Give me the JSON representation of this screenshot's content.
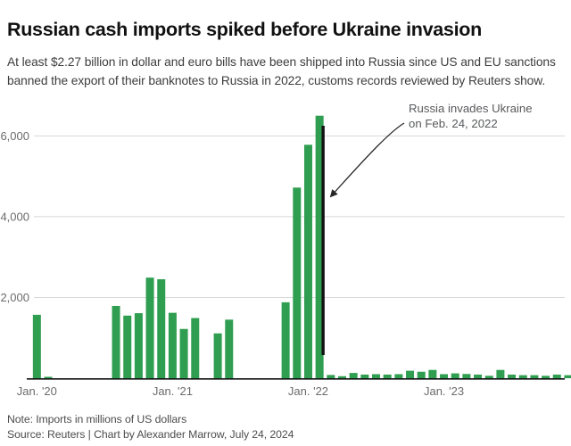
{
  "header": {
    "title": "Russian cash imports spiked before Ukraine invasion",
    "subtitle": "At least $2.27 billion in dollar and euro bills have been shipped into Russia since US and EU sanctions banned the export of their banknotes to Russia in 2022, customs records reviewed by Reuters show."
  },
  "chart_data": {
    "type": "bar",
    "title": "Russian cash imports spiked before Ukraine invasion",
    "unit": "millions of US dollars",
    "x": [
      "Jan '20",
      "Feb '20",
      "Mar '20",
      "Apr '20",
      "May '20",
      "Jun '20",
      "Jul '20",
      "Aug '20",
      "Sep '20",
      "Oct '20",
      "Nov '20",
      "Dec '20",
      "Jan '21",
      "Feb '21",
      "Mar '21",
      "Apr '21",
      "May '21",
      "Jun '21",
      "Jul '21",
      "Aug '21",
      "Sep '21",
      "Oct '21",
      "Nov '21",
      "Dec '21",
      "Jan '22",
      "Feb '22",
      "Mar '22",
      "Apr '22",
      "May '22",
      "Jun '22",
      "Jul '22",
      "Aug '22",
      "Sep '22",
      "Oct '22",
      "Nov '22",
      "Dec '22",
      "Jan '23",
      "Feb '23",
      "Mar '23",
      "Apr '23",
      "May '23",
      "Jun '23",
      "Jul '23",
      "Aug '23",
      "Sep '23",
      "Oct '23",
      "Nov '23",
      "Dec '23"
    ],
    "values": [
      1570,
      35,
      0,
      0,
      0,
      0,
      0,
      1790,
      1550,
      1610,
      2490,
      2450,
      1620,
      1220,
      1490,
      0,
      1110,
      1450,
      0,
      0,
      0,
      0,
      1880,
      4720,
      5780,
      6500,
      80,
      50,
      130,
      90,
      100,
      90,
      100,
      185,
      160,
      205,
      100,
      120,
      105,
      90,
      60,
      205,
      90,
      75,
      75,
      60,
      90,
      75
    ],
    "x_ticks": [
      {
        "index": 0,
        "label": "Jan. '20"
      },
      {
        "index": 12,
        "label": "Jan. '21"
      },
      {
        "index": 24,
        "label": "Jan. '22"
      },
      {
        "index": 36,
        "label": "Jan. '23"
      }
    ],
    "y_ticks": [
      {
        "value": 2000,
        "label": "2,000"
      },
      {
        "value": 4000,
        "label": "4,000"
      },
      {
        "value": 6000,
        "label": "6,000"
      }
    ],
    "ylim": [
      0,
      6600
    ],
    "grid": "horizontal",
    "legend": "none",
    "annotation": {
      "line1": "Russia invades Ukraine",
      "line2": "on Feb. 24, 2022",
      "event_month": "Feb '22",
      "marker": "vertical-line"
    },
    "colors": {
      "bar": "#2f9e50",
      "event_line": "#121212",
      "annotation_text": "#58595b",
      "axis_line": "#111111",
      "gridline": "#d8d8d8",
      "tick_label": "#6b6b6b"
    }
  },
  "footer": {
    "note": "Note: Imports in millions of US dollars",
    "source": "Source: Reuters | Chart by Alexander Marrow, July 24, 2024"
  }
}
